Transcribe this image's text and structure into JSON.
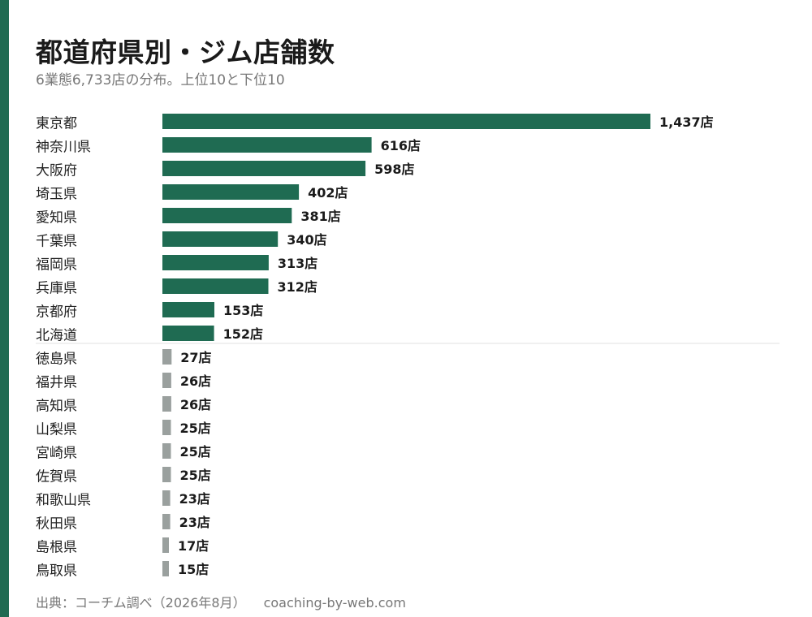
{
  "title": "都道府県別・ジム店舗数",
  "subtitle": "6業態6,733店の分布。上位10と下位10",
  "source": {
    "text": "出典：コーチム調べ（2026年8月）",
    "site": "coaching-by-web.com"
  },
  "colors": {
    "accent": "#1f6b52",
    "top": "#1f6b52",
    "bottom": "#9aa09e",
    "divider": "#e2e2e2"
  },
  "chart_data": {
    "type": "bar",
    "orientation": "horizontal",
    "value_suffix": "店",
    "title": "都道府県別・ジム店舗数",
    "subtitle": "6業態6,733店の分布。上位10と下位10",
    "xlim": [
      0,
      1437
    ],
    "grid": false,
    "legend": "none",
    "groups": [
      {
        "group": "top",
        "categories": [
          "東京都",
          "神奈川県",
          "大阪府",
          "埼玉県",
          "愛知県",
          "千葉県",
          "福岡県",
          "兵庫県",
          "京都府",
          "北海道"
        ],
        "values": [
          1437,
          616,
          598,
          402,
          381,
          340,
          313,
          312,
          153,
          152
        ],
        "labels": [
          "1,437店",
          "616店",
          "598店",
          "402店",
          "381店",
          "340店",
          "313店",
          "312店",
          "153店",
          "152店"
        ]
      },
      {
        "group": "bottom",
        "categories": [
          "徳島県",
          "福井県",
          "高知県",
          "山梨県",
          "宮崎県",
          "佐賀県",
          "和歌山県",
          "秋田県",
          "島根県",
          "鳥取県"
        ],
        "values": [
          27,
          26,
          26,
          25,
          25,
          25,
          23,
          23,
          17,
          15
        ],
        "labels": [
          "27店",
          "26店",
          "26店",
          "25店",
          "25店",
          "25店",
          "23店",
          "23店",
          "17店",
          "15店"
        ]
      }
    ]
  }
}
